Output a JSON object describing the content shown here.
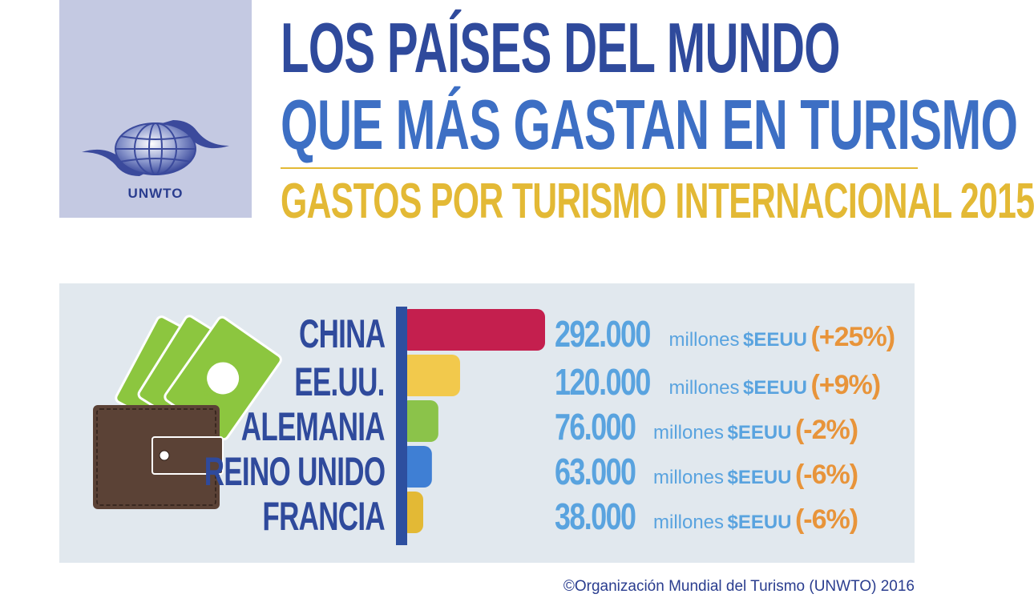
{
  "logo": {
    "text": "UNWTO"
  },
  "header": {
    "title_line1": "LOS PAÍSES DEL MUNDO",
    "title_line2": "QUE MÁS GASTAN EN TURISMO",
    "subtitle": "GASTOS POR TURISMO INTERNACIONAL 2015"
  },
  "colors": {
    "title_dark": "#2f4a9c",
    "title_light": "#3d6fc4",
    "subtitle": "#e3b935",
    "axis": "#2d4f9f",
    "value_text": "#59a3df",
    "change_text": "#e8943a",
    "panel_bg": "#e1e8ee"
  },
  "icons": [
    "globe-logo-icon",
    "wallet-icon",
    "banknote-icon",
    "dollar-icon"
  ],
  "chart_data": {
    "type": "bar",
    "orientation": "horizontal",
    "categories": [
      "CHINA",
      "EE.UU.",
      "ALEMANIA",
      "REINO UNIDO",
      "FRANCIA"
    ],
    "values": [
      292000,
      120000,
      76000,
      63000,
      38000
    ],
    "value_labels": [
      "292.000",
      "120.000",
      "76.000",
      "63.000",
      "38.000"
    ],
    "unit_word": "millones",
    "currency": "$EEUU",
    "changes": [
      "(+25%)",
      "(+9%)",
      "(-2%)",
      "(-6%)",
      "(-6%)"
    ],
    "bar_colors": [
      "#c41f4e",
      "#f2c94c",
      "#8bc34a",
      "#3f7fd4",
      "#e3b935"
    ],
    "title": "GASTOS POR TURISMO INTERNACIONAL 2015"
  },
  "footer": {
    "text": "©Organización Mundial del Turismo (UNWTO) 2016"
  }
}
